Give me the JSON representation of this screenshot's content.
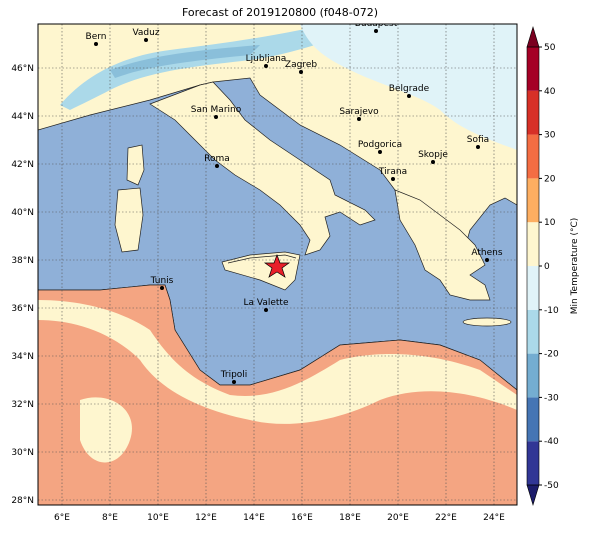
{
  "title": "Forecast of 2019120800 (f048-072)",
  "cities": [
    "Bern",
    "Vaduz",
    "Budapest",
    "Ljubljana",
    "Zagreb",
    "Belgrade",
    "San Marino",
    "Sarajevo",
    "Sofia",
    "Podgorica",
    "Skopje",
    "Roma",
    "Tirana",
    "Athens",
    "Tunis",
    "La Valette",
    "Tripoli"
  ],
  "lon_ticks": [
    "6°E",
    "8°E",
    "10°E",
    "12°E",
    "14°E",
    "16°E",
    "18°E",
    "20°E",
    "22°E",
    "24°E"
  ],
  "lat_ticks": [
    "28°N",
    "30°N",
    "32°N",
    "34°N",
    "36°N",
    "38°N",
    "40°N",
    "42°N",
    "44°N",
    "46°N"
  ],
  "colorbar": {
    "label": "Min Temperature (°C)",
    "lim": [
      -50,
      50
    ],
    "ticks": [
      -50,
      -40,
      -30,
      -20,
      -10,
      0,
      10,
      20,
      30,
      40,
      50
    ],
    "colors": [
      "#313695",
      "#4575b4",
      "#74add1",
      "#abd9e9",
      "#e0f3f8",
      "#fef6cf",
      "#fdae61",
      "#f46d43",
      "#d73027",
      "#a50026"
    ],
    "under_color": "#1c1c6b",
    "over_color": "#7a0020"
  }
}
